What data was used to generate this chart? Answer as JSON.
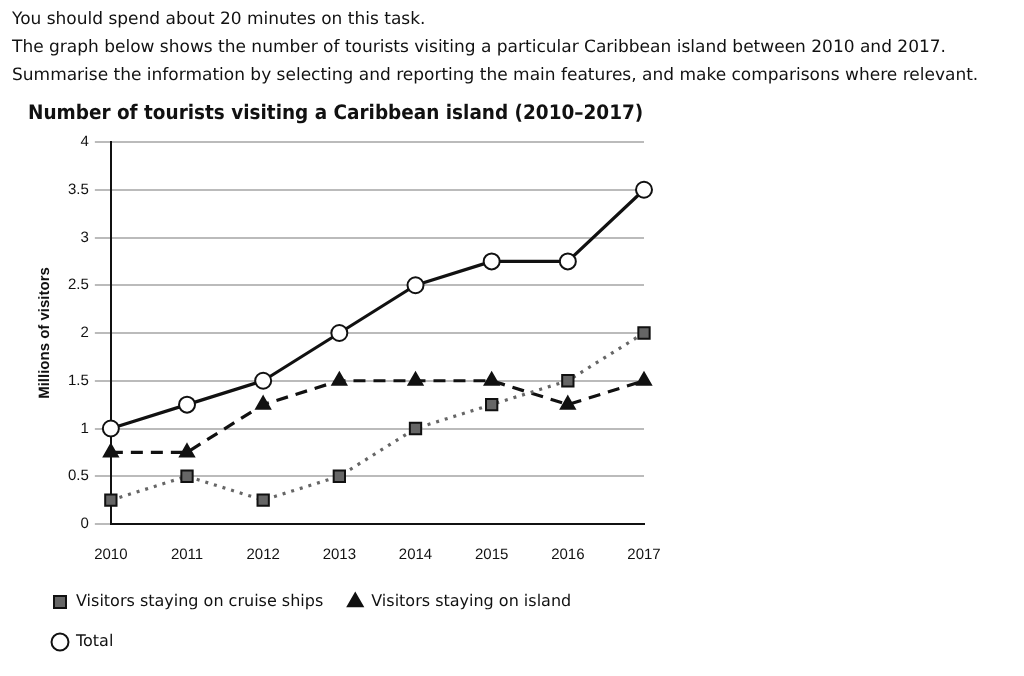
{
  "chart_data": {
    "type": "line",
    "title": "Number of tourists visiting a Caribbean island (2010–2017)",
    "annotations": [
      "You should spend about 20 minutes on this task.",
      "The graph below shows the number of tourists visiting a particular Caribbean island between 2010 and 2017.",
      "Summarise the information by selecting and reporting the main features, and make comparisons where relevant."
    ],
    "ylabel": "Millions of visitors",
    "categories": [
      "2010",
      "2011",
      "2012",
      "2013",
      "2014",
      "2015",
      "2016",
      "2017"
    ],
    "series": [
      {
        "name": "Visitors staying on cruise ships",
        "color": "#666666",
        "marker": "square",
        "line_style": "dotted",
        "values": [
          0.25,
          0.5,
          0.25,
          0.5,
          1,
          1.25,
          1.5,
          2
        ]
      },
      {
        "name": "Visitors staying on island",
        "color": "#111111",
        "marker": "triangle",
        "line_style": "dashed",
        "values": [
          0.75,
          0.75,
          1.25,
          1.5,
          1.5,
          1.5,
          1.25,
          1.5
        ]
      },
      {
        "name": "Total",
        "color": "#111111",
        "marker": "circle",
        "line_style": "solid",
        "values": [
          1,
          1.25,
          1.5,
          2,
          2.5,
          2.75,
          2.75,
          3.5
        ]
      }
    ],
    "ylim": [
      0,
      4
    ],
    "yticks": [
      0,
      0.5,
      1,
      1.5,
      2,
      2.5,
      3,
      3.5,
      4
    ],
    "grid": "y",
    "legend": "bottom left"
  }
}
